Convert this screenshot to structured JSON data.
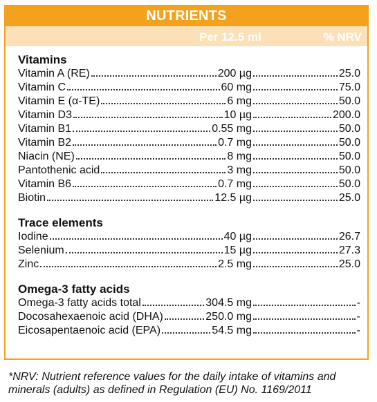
{
  "header": {
    "title": "NUTRIENTS",
    "per_label": "Per 12.5 ml",
    "nrv_label": "% NRV"
  },
  "sections": {
    "vitamins": {
      "title": "Vitamins",
      "rows": [
        {
          "name": "Vitamin A (RE)",
          "amount": "200 µg",
          "nrv": "25.0"
        },
        {
          "name": "Vitamin C",
          "amount": "60 mg",
          "nrv": "75.0"
        },
        {
          "name": "Vitamin E (α-TE)",
          "amount": "6 mg",
          "nrv": "50.0"
        },
        {
          "name": "Vitamin D3",
          "amount": "10 µg",
          "nrv": "200.0"
        },
        {
          "name": "Vitamin B1",
          "amount": "0.55 mg",
          "nrv": "50.0"
        },
        {
          "name": "Vitamin B2",
          "amount": "0.7 mg",
          "nrv": "50.0"
        },
        {
          "name": "Niacin (NE)",
          "amount": "8 mg",
          "nrv": "50.0"
        },
        {
          "name": "Pantothenic acid",
          "amount": "3 mg",
          "nrv": "50.0"
        },
        {
          "name": "Vitamin B6",
          "amount": "0.7 mg",
          "nrv": "50.0"
        },
        {
          "name": "Biotin",
          "amount": "12.5 µg",
          "nrv": "25.0"
        }
      ]
    },
    "trace": {
      "title": "Trace elements",
      "rows": [
        {
          "name": "Iodine",
          "amount": "40 µg",
          "nrv": "26.7"
        },
        {
          "name": "Selenium",
          "amount": "15 µg",
          "nrv": "27.3"
        },
        {
          "name": "Zinc",
          "amount": "2.5 mg",
          "nrv": "25.0"
        }
      ]
    },
    "omega": {
      "title": "Omega-3 fatty acids",
      "rows": [
        {
          "name": "Omega-3 fatty acids total",
          "amount": "304.5 mg",
          "nrv": "-"
        },
        {
          "name": "Docosahexaenoic acid (DHA)",
          "amount": "250.0 mg",
          "nrv": "-"
        },
        {
          "name": "Eicosapentaenoic acid (EPA)",
          "amount": "54.5 mg",
          "nrv": "-"
        }
      ]
    }
  },
  "footnote": "*NRV: Nutrient reference values for the daily intake of vitamins and minerals (adults) as defined in Regulation (EU) No. 1169/2011",
  "colors": {
    "accent": "#f4a21d",
    "subheader_bg": "#fbe0b8"
  }
}
